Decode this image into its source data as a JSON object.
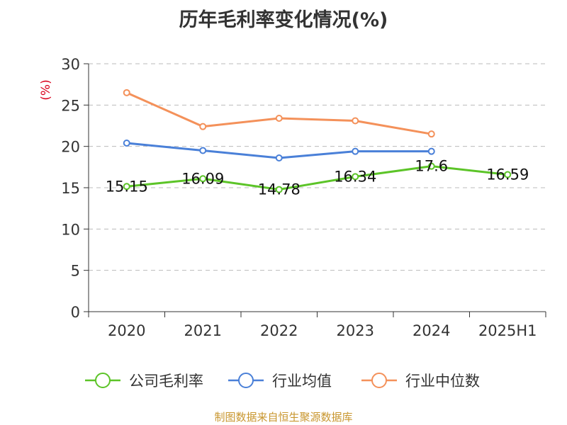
{
  "chart_data": {
    "type": "line",
    "title": "历年毛利率变化情况(%)",
    "ylabel": "(%)",
    "xlabel": "",
    "categories": [
      "2020",
      "2021",
      "2022",
      "2023",
      "2024",
      "2025H1"
    ],
    "ylim": [
      0,
      30
    ],
    "yticks": [
      0,
      5,
      10,
      15,
      20,
      25,
      30
    ],
    "grid": true,
    "legend_position": "bottom",
    "series": [
      {
        "name": "公司毛利率",
        "color": "#5cc428",
        "values": [
          15.15,
          16.09,
          14.78,
          16.34,
          17.6,
          16.59
        ],
        "labels": [
          "15.15",
          "16.09",
          "14.78",
          "16.34",
          "17.6",
          "16.59"
        ]
      },
      {
        "name": "行业均值",
        "color": "#4a80d8",
        "values": [
          20.4,
          19.5,
          18.6,
          19.4,
          19.4,
          null
        ]
      },
      {
        "name": "行业中位数",
        "color": "#f4915a",
        "values": [
          26.5,
          22.4,
          23.4,
          23.1,
          21.5,
          null
        ]
      }
    ],
    "source": "制图数据来自恒生聚源数据库"
  },
  "colors": {
    "axis": "#333333",
    "grid": "#bbbbbb",
    "ylabel": "#d9001b",
    "source": "#c8962e"
  }
}
